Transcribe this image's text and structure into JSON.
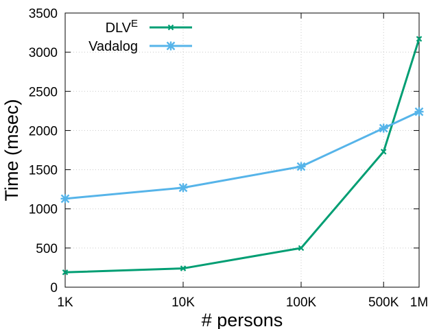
{
  "chart_data": {
    "type": "line",
    "title": "",
    "xlabel": "# persons",
    "ylabel": "Time (msec)",
    "x_scale": "log",
    "categories": [
      "1K",
      "10K",
      "100K",
      "500K",
      "1M"
    ],
    "x": [
      1000,
      10000,
      100000,
      500000,
      1000000
    ],
    "ylim": [
      0,
      3500
    ],
    "yticks": [
      0,
      500,
      1000,
      1500,
      2000,
      2500,
      3000,
      3500
    ],
    "grid": true,
    "legend_position": "top-left",
    "series": [
      {
        "name": "DLV",
        "name_superscript": "E",
        "color": "#009e73",
        "marker": "x-small",
        "values": [
          190,
          240,
          500,
          1730,
          3170
        ]
      },
      {
        "name": "Vadalog",
        "name_superscript": "",
        "color": "#56b4e9",
        "marker": "star",
        "values": [
          1130,
          1270,
          1540,
          2030,
          2240
        ]
      }
    ]
  }
}
